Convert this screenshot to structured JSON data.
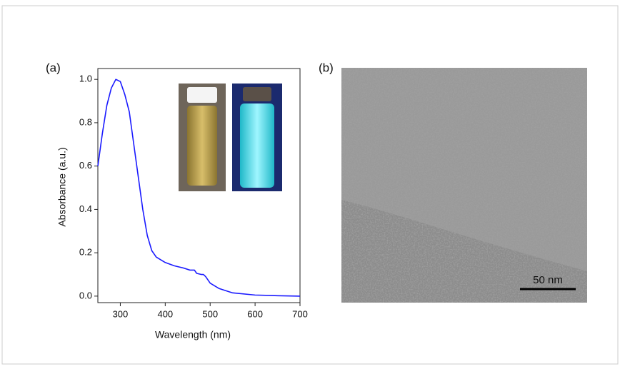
{
  "chart_data": {
    "type": "line",
    "panel_label": "(a)",
    "x_label": "Wavelength (nm)",
    "y_label": "Absorbance (a.u.)",
    "x": [
      250,
      260,
      270,
      280,
      290,
      300,
      310,
      320,
      330,
      340,
      350,
      360,
      370,
      380,
      400,
      420,
      440,
      455,
      465,
      470,
      480,
      485,
      490,
      500,
      520,
      550,
      600,
      650,
      700
    ],
    "values": [
      0.6,
      0.75,
      0.88,
      0.96,
      1.0,
      0.99,
      0.93,
      0.85,
      0.7,
      0.55,
      0.4,
      0.28,
      0.21,
      0.18,
      0.155,
      0.14,
      0.13,
      0.12,
      0.12,
      0.105,
      0.1,
      0.1,
      0.09,
      0.06,
      0.035,
      0.015,
      0.005,
      0.002,
      0
    ],
    "color": "#1a1aff",
    "xlim": [
      250,
      700
    ],
    "xticks": [
      300,
      400,
      500,
      600,
      700
    ],
    "ylim": [
      -0.03,
      1.05
    ],
    "yticks": [
      {
        "value": 0,
        "label": "0.0"
      },
      0.2,
      0.4,
      0.6,
      0.8,
      {
        "value": 1,
        "label": "1.0"
      }
    ]
  },
  "image_panel": {
    "label": "(b)",
    "scale_bar": "50 nm"
  }
}
